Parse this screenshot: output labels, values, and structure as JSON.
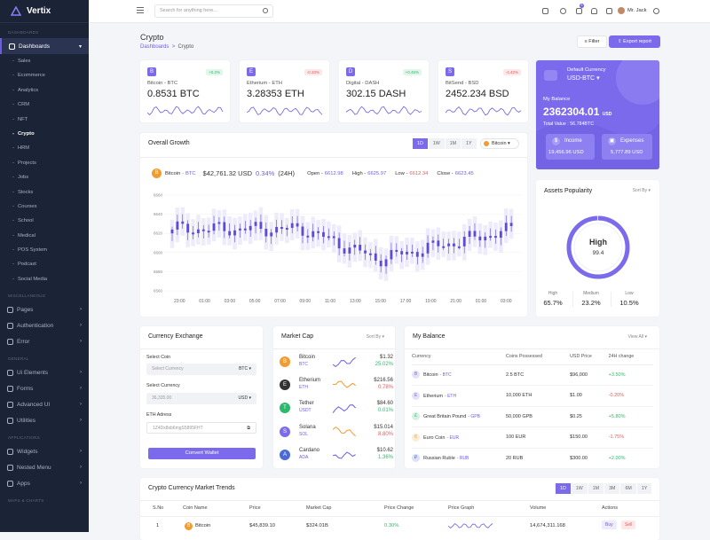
{
  "app": {
    "name": "Vertix"
  },
  "sidebar": {
    "sections": [
      "DASHBOARDS",
      "MISCELLANEOUS",
      "GENERAL",
      "APPLICATIONS",
      "MAPS & CHARTS"
    ],
    "dashboards_label": "Dashboards",
    "sub_items": [
      "Sales",
      "Ecommerce",
      "Analytics",
      "CRM",
      "NFT",
      "Crypto",
      "HRM",
      "Projects",
      "Jobs",
      "Stocks",
      "Courses",
      "School",
      "Medical",
      "POS System",
      "Podcast",
      "Social Media"
    ],
    "misc": [
      "Pages",
      "Authentication",
      "Error"
    ],
    "general": [
      "Ui Elements",
      "Forms",
      "Advanced UI",
      "Utilities"
    ],
    "apps": [
      "Widgets",
      "Nested Menu",
      "Apps"
    ]
  },
  "topbar": {
    "search_placeholder": "Search for anything here...",
    "cart_count": "5",
    "user_name": "Mr. Jack"
  },
  "page": {
    "title": "Crypto",
    "breadcrumb_parent": "Dashboards",
    "breadcrumb_current": "Crypto",
    "filter_label": "Filter",
    "export_label": "Export report"
  },
  "coins": [
    {
      "name": "Bitcoin - BTC",
      "value": "0.8531 BTC",
      "change": "+0.2%",
      "up": true,
      "color": "#7b6bec",
      "icon": "B"
    },
    {
      "name": "Etherium - ETH",
      "value": "3.28353 ETH",
      "change": "-0.33%",
      "up": false,
      "color": "#7b6bec",
      "icon": "E"
    },
    {
      "name": "Digital - DASH",
      "value": "302.15 DASH",
      "change": "+0.45%",
      "up": true,
      "color": "#7b6bec",
      "icon": "D"
    },
    {
      "name": "BitSend - BSD",
      "value": "2452.234 BSD",
      "change": "-4.42%",
      "up": false,
      "color": "#7b6bec",
      "icon": "S"
    }
  ],
  "balance_card": {
    "default_currency_label": "Default Currency",
    "currency": "USD-BTC",
    "my_balance_label": "My Balance",
    "balance": "2362304.01",
    "balance_unit": "USD",
    "total_value": "Total Value : 56.784BTC",
    "income_label": "Income",
    "income_value": "19,456.96 USD",
    "expenses_label": "Expenses",
    "expenses_value": "5,777.89 USD"
  },
  "growth": {
    "title": "Overall Growth",
    "tabs": [
      "1D",
      "1W",
      "1M",
      "1Y"
    ],
    "coin_select": "Bitcoin",
    "coin": "Bitcoin",
    "coin_tag": "- BTC",
    "price": "$42,761.32 USD",
    "pct": "0.34%",
    "period": "(24H)",
    "open_label": "Open -",
    "open": "6612.98",
    "high_label": "High -",
    "high": "6625.97",
    "low_label": "Low -",
    "low": "6612.34",
    "close_label": "Close -",
    "close": "6623.45"
  },
  "chart_data": {
    "type": "candlestick",
    "x": [
      "23:00",
      "01:00",
      "03:00",
      "05:00",
      "07:00",
      "09:00",
      "11:00",
      "13:00",
      "15:00",
      "17:00",
      "19:00",
      "21:00",
      "01:00",
      "03:00"
    ],
    "yticks": [
      "6660",
      "6640",
      "6620",
      "6600",
      "6580",
      "6560"
    ],
    "ylim": [
      6560,
      6660
    ]
  },
  "popularity": {
    "title": "Assets Popularity",
    "sort": "Sort By",
    "center_label": "High",
    "center_value": "99.4",
    "ring_fraction": 0.994,
    "stats": [
      {
        "label": "High",
        "value": "65.7%"
      },
      {
        "label": "Medium",
        "value": "23.2%"
      },
      {
        "label": "Low",
        "value": "10.5%"
      }
    ]
  },
  "exchange": {
    "title": "Currency Exchange",
    "select_coin_label": "Select Coin",
    "select_coin_placeholder": "Select Currency",
    "select_coin_value": "BTC",
    "select_currency_label": "Select Currency",
    "amount": "36,335.00",
    "currency_value": "USD",
    "eth_label": "ETH Adress",
    "eth_address": "1Z4Dx8sb6mgS5895FHT",
    "button": "Convert Wallet"
  },
  "market_cap": {
    "title": "Market Cap",
    "sort": "Sort By",
    "items": [
      {
        "name": "Bitcoin",
        "sym": "BTC",
        "price": "$1.32",
        "pct": "25.02%",
        "up": true,
        "color": "#f29b30",
        "icon": "B"
      },
      {
        "name": "Etherium",
        "sym": "ETH",
        "price": "$216.56",
        "pct": "0.78%",
        "up": false,
        "color": "#333",
        "icon": "E"
      },
      {
        "name": "Tether",
        "sym": "USDT",
        "price": "$84.60",
        "pct": "0.01%",
        "up": true,
        "color": "#2db96c",
        "icon": "T"
      },
      {
        "name": "Solana",
        "sym": "SOL",
        "price": "$15.014",
        "pct": "8.80%",
        "up": false,
        "color": "#7b6bec",
        "icon": "S"
      },
      {
        "name": "Cardano",
        "sym": "ADA",
        "price": "$10.62",
        "pct": "1.36%",
        "up": true,
        "color": "#4a6ad8",
        "icon": "A"
      }
    ]
  },
  "my_balance": {
    "title": "My Balance",
    "view_all": "View All",
    "headers": [
      "Currency",
      "Coins Possessed",
      "USD Price",
      "24H change"
    ],
    "rows": [
      {
        "name": "Bitcoin",
        "tag": "- BTC",
        "coins": "2.5 BTC",
        "price": "$96,000",
        "change": "+3.50%",
        "up": true,
        "color": "#7b6bec",
        "icon": "B"
      },
      {
        "name": "Etherium",
        "tag": "- ETH",
        "coins": "10,000 ETH",
        "price": "$1.00",
        "change": "-0.20%",
        "up": false,
        "color": "#7b6bec",
        "icon": "E"
      },
      {
        "name": "Great Britain Pound",
        "tag": "- GPB",
        "coins": "50,000 GPB",
        "price": "$0.25",
        "change": "+5.80%",
        "up": true,
        "color": "#2db96c",
        "icon": "£"
      },
      {
        "name": "Euro Coin",
        "tag": "- EUR",
        "coins": "100 EUR",
        "price": "$150.00",
        "change": "-1.75%",
        "up": false,
        "color": "#f29b30",
        "icon": "€"
      },
      {
        "name": "Russian Ruble",
        "tag": "- RUB",
        "coins": "20 RUB",
        "price": "$300.00",
        "change": "+2.00%",
        "up": true,
        "color": "#4a6ad8",
        "icon": "₽"
      }
    ]
  },
  "trends": {
    "title": "Crypto Currency Market Trends",
    "tabs": [
      "1D",
      "1W",
      "1M",
      "3M",
      "6M",
      "1Y"
    ],
    "headers": [
      "S.No",
      "Coin Name",
      "Price",
      "Market Cap",
      "Price Change",
      "Price Graph",
      "Volume",
      "Actions"
    ],
    "row": {
      "no": "1",
      "coin": "Bitcoin",
      "price": "$45,839.10",
      "cap": "$324.01B",
      "change": "0.30%",
      "volume": "14,674,311.168",
      "buy": "Buy",
      "sell": "Sell"
    }
  }
}
